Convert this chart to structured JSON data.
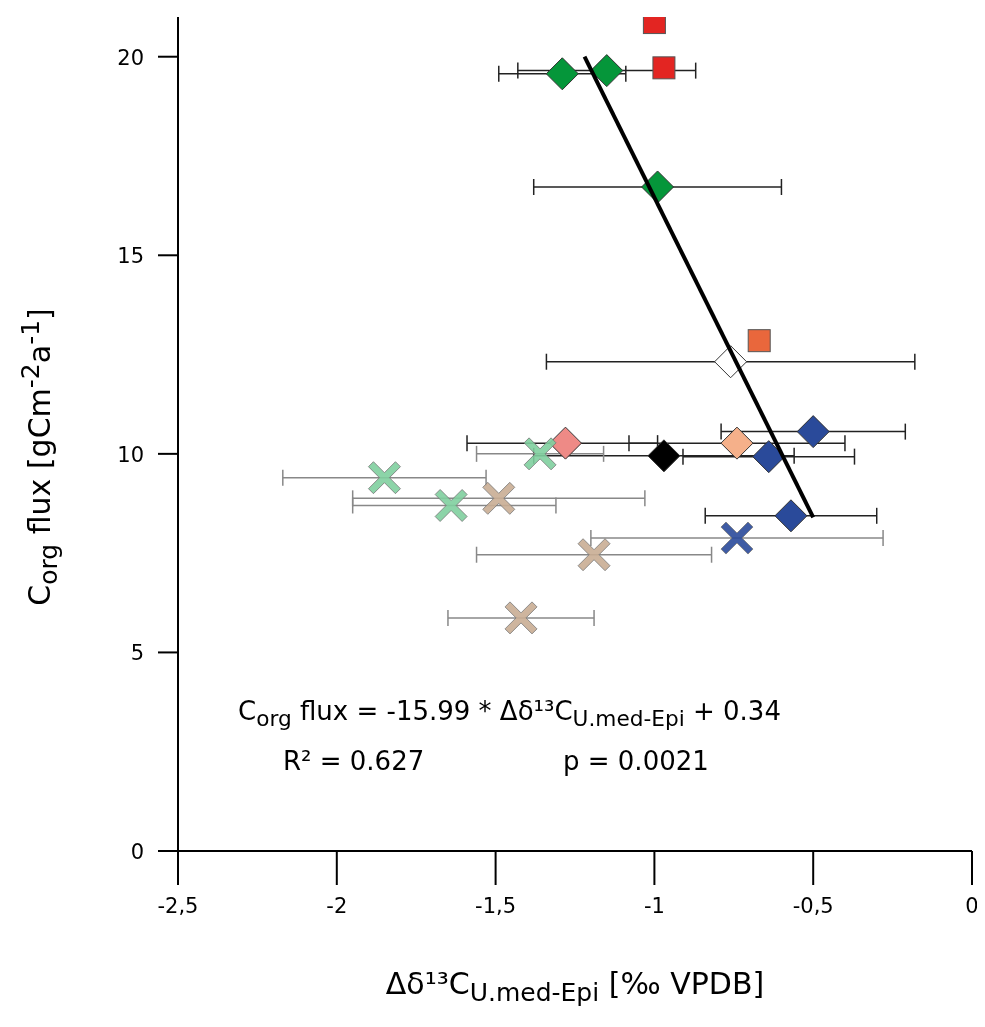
{
  "chart_data": {
    "type": "scatter",
    "xlabel": "Δδ¹³C$_{U.med-Epi}$ [‰ VPDB]",
    "ylabel": "C$_{org}$ flux [gCm$^{-2}$a$^{-1}$]",
    "xlim": [
      -2.5,
      0
    ],
    "xticks": [
      {
        "value": -2.5,
        "label": "-2,5"
      },
      {
        "value": -2,
        "label": "-2"
      },
      {
        "value": -1.5,
        "label": "-1,5"
      },
      {
        "value": -1,
        "label": "-1"
      },
      {
        "value": -0.5,
        "label": "-0,5"
      },
      {
        "value": 0,
        "label": "0"
      }
    ],
    "ylim": [
      0,
      21
    ],
    "yticks": [
      0,
      5,
      10,
      15,
      20
    ],
    "grid": false,
    "legend": false,
    "series": [
      {
        "marker": "square",
        "color": "#e32522",
        "colors": [
          "#e32522",
          "#e32522",
          "#e9673c"
        ],
        "x": [
          -1.0,
          -0.97,
          -0.67
        ],
        "values": [
          20.86,
          19.72,
          12.85
        ]
      },
      {
        "marker": "diamond",
        "color": "#05963a",
        "colors": [
          "#05963a",
          "#05963a",
          "#05963a",
          "#ffffff",
          "#2a4a9a",
          "#f5b08a",
          "#ee8a86",
          "#000000",
          "#2a4a9a",
          "#2a4a9a"
        ],
        "x": [
          -1.29,
          -1.15,
          -0.99,
          -0.76,
          -0.5,
          -0.74,
          -1.28,
          -0.97,
          -0.64,
          -0.57
        ],
        "values": [
          19.57,
          19.65,
          16.72,
          12.32,
          10.56,
          10.27,
          10.27,
          9.95,
          9.93,
          8.44
        ],
        "xerrors": [
          [
            -1.49,
            -1.09
          ],
          [
            -1.43,
            -0.87
          ],
          [
            -1.38,
            -0.6
          ],
          [
            -1.34,
            -0.18
          ],
          [
            -0.79,
            -0.21
          ],
          [
            -1.08,
            -0.4
          ],
          [
            -1.59,
            -0.99
          ],
          [
            -1.38,
            -0.56
          ],
          [
            -0.91,
            -0.37
          ],
          [
            -0.84,
            -0.3
          ]
        ]
      },
      {
        "marker": "cross",
        "color": "#7fcf9f",
        "colors": [
          "#7fcf9f",
          "#7fcf9f",
          "#7fcf9f",
          "#c9ad93",
          "#2a4a9a",
          "#c9ad93",
          "#c9ad93"
        ],
        "x": [
          -1.36,
          -1.85,
          -1.64,
          -1.49,
          -0.74,
          -1.19,
          -1.42
        ],
        "values": [
          10.0,
          9.4,
          8.7,
          8.88,
          7.88,
          7.46,
          5.87
        ],
        "xerrors": [
          [
            -1.56,
            -1.16
          ],
          [
            -2.17,
            -1.53
          ],
          [
            -1.95,
            -1.31
          ],
          [
            -1.95,
            -1.03
          ],
          [
            -1.2,
            -0.28
          ],
          [
            -1.56,
            -0.82
          ],
          [
            -1.65,
            -1.19
          ]
        ]
      },
      {
        "type": "line",
        "marker": "none",
        "color": "#000000",
        "x": [
          -1.22,
          -0.5
        ],
        "values": [
          20.0,
          8.4
        ]
      }
    ],
    "annotations": [
      "C$_{org}$ flux = -15.99 * Δδ¹³C$_{U.med-Epi}$ + 0.34",
      "R² = 0.627",
      "p = 0.0021"
    ]
  }
}
